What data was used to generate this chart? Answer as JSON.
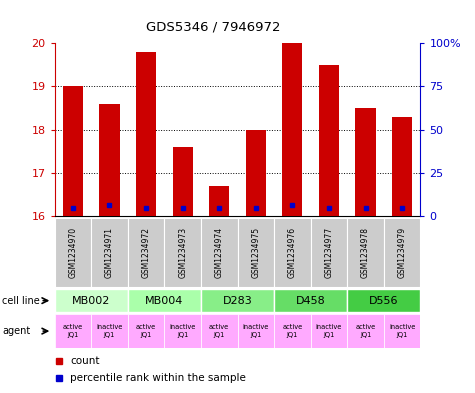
{
  "title": "GDS5346 / 7946972",
  "samples": [
    "GSM1234970",
    "GSM1234971",
    "GSM1234972",
    "GSM1234973",
    "GSM1234974",
    "GSM1234975",
    "GSM1234976",
    "GSM1234977",
    "GSM1234978",
    "GSM1234979"
  ],
  "red_values": [
    19.0,
    18.6,
    19.8,
    17.6,
    16.7,
    18.0,
    20.0,
    19.5,
    18.5,
    18.3
  ],
  "blue_heights": [
    16.2,
    16.25,
    16.2,
    16.2,
    16.2,
    16.2,
    16.25,
    16.2,
    16.2,
    16.2
  ],
  "ymin": 16,
  "ymax": 20,
  "yticks_left": [
    16,
    17,
    18,
    19,
    20
  ],
  "yticks_right": [
    0,
    25,
    50,
    75,
    100
  ],
  "cell_lines": [
    {
      "label": "MB002",
      "cols": [
        0,
        1
      ],
      "color": "#ccffcc"
    },
    {
      "label": "MB004",
      "cols": [
        2,
        3
      ],
      "color": "#aaffaa"
    },
    {
      "label": "D283",
      "cols": [
        4,
        5
      ],
      "color": "#88ee88"
    },
    {
      "label": "D458",
      "cols": [
        6,
        7
      ],
      "color": "#66dd66"
    },
    {
      "label": "D556",
      "cols": [
        8,
        9
      ],
      "color": "#44cc44"
    }
  ],
  "agents": [
    "active\nJQ1",
    "inactive\nJQ1",
    "active\nJQ1",
    "inactive\nJQ1",
    "active\nJQ1",
    "inactive\nJQ1",
    "active\nJQ1",
    "inactive\nJQ1",
    "active\nJQ1",
    "inactive\nJQ1"
  ],
  "agent_bg_active": "#ffaaff",
  "agent_bg_inactive": "#ee66ee",
  "bar_width": 0.55,
  "bar_color": "#cc0000",
  "blue_color": "#0000cc",
  "sample_row_color": "#cccccc",
  "left_label_color": "#cc0000",
  "right_label_color": "#0000cc",
  "background_color": "#ffffff"
}
